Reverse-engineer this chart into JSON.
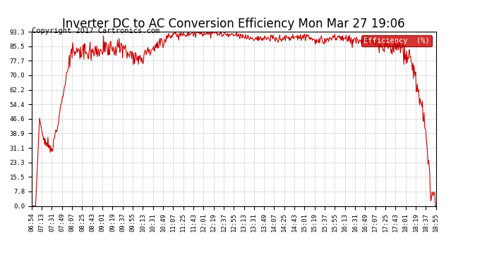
{
  "title": "Inverter DC to AC Conversion Efficiency Mon Mar 27 19:06",
  "copyright": "Copyright 2017 Cartronics.com",
  "legend_label": "Efficiency  (%)",
  "legend_bg": "#cc0000",
  "legend_fg": "#ffffff",
  "line_color": "#cc0000",
  "background_color": "#ffffff",
  "grid_color": "#bbbbbb",
  "yticks": [
    0.0,
    7.8,
    15.5,
    23.3,
    31.1,
    38.9,
    46.6,
    54.4,
    62.2,
    70.0,
    77.7,
    85.5,
    93.3
  ],
  "ymin": 0.0,
  "ymax": 93.3,
  "xtick_labels": [
    "06:54",
    "07:13",
    "07:31",
    "07:49",
    "08:07",
    "08:25",
    "08:43",
    "09:01",
    "09:19",
    "09:37",
    "09:55",
    "10:13",
    "10:31",
    "10:49",
    "11:07",
    "11:25",
    "11:43",
    "12:01",
    "12:19",
    "12:37",
    "12:55",
    "13:13",
    "13:31",
    "13:49",
    "14:07",
    "14:25",
    "14:43",
    "15:01",
    "15:19",
    "15:37",
    "15:55",
    "16:13",
    "16:31",
    "16:49",
    "17:07",
    "17:25",
    "17:43",
    "18:01",
    "18:19",
    "18:37",
    "18:55"
  ],
  "title_fontsize": 12,
  "copyright_fontsize": 7.5,
  "tick_fontsize": 6.5,
  "line_width": 0.8
}
